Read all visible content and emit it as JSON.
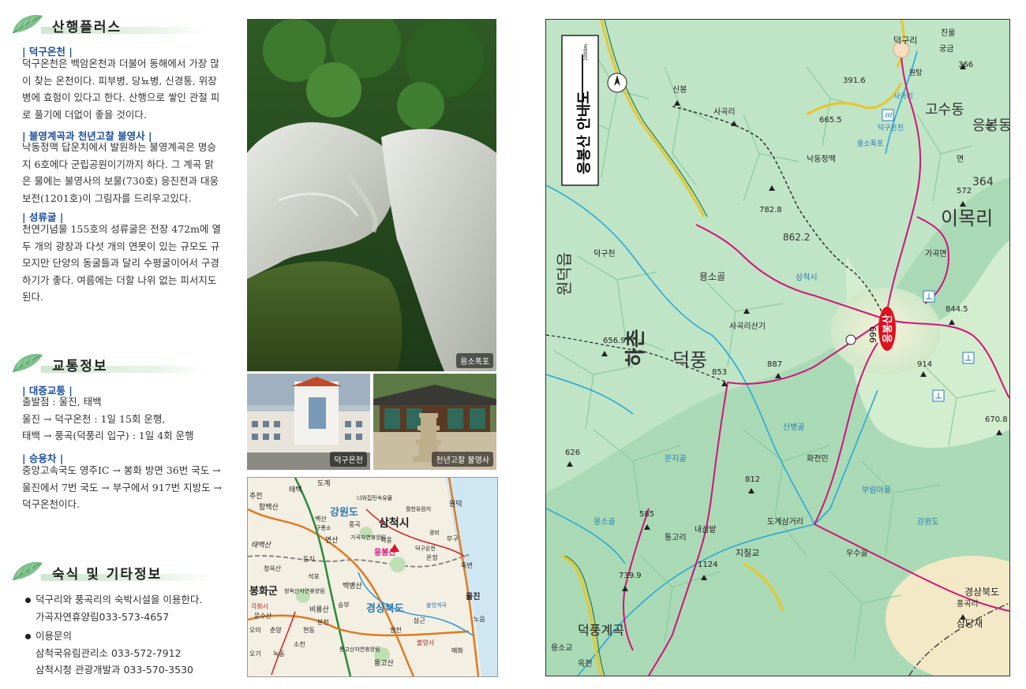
{
  "sections": {
    "hiking": {
      "title": "산행플러스",
      "items": [
        {
          "heading": "| 덕구온천 |",
          "lines": [
            "덕구온천은 백암온천과 더불어 동해에서 가장 많",
            "이 찾는 온천이다. 피부병, 당뇨병, 신경통, 위장",
            "병에 효험이 있다고 한다. 산행으로 쌓인 관절 피",
            "로 풀기에 더없이 좋을 것이다."
          ]
        },
        {
          "heading": "| 불영계곡과 천년고찰 불영사 |",
          "lines": [
            "낙동정맥 답운치에서 발원하는 불영계곡은 명승",
            "지 6호에다 군립공원이기까지 하다. 그 계곡 맑",
            "은 물에는 불영사의 보물(730호) 응진전과 대웅",
            "보전(1201호)이 그림자를 드리우고있다."
          ]
        },
        {
          "heading": "| 성류굴 |",
          "lines": [
            " 천연기념물 155호의 성류굴은 전장 472m에 열",
            "두 개의 광장과 다섯 개의 연못이 있는 규모도 규",
            "모지만 단양의 동굴들과 달리 수평굴이어서 구경",
            "하기가 좋다. 여름에는 더할 나위 없는 피서지도",
            "된다."
          ]
        }
      ]
    },
    "transport": {
      "title": "교통정보",
      "items": [
        {
          "heading": "| 대중교통 |",
          "lines": [
            "출발점 : 울진, 태백",
            "울진 → 덕구온천 : 1일 15회 운행,",
            "태백 → 풍곡(덕풍리 입구) : 1일 4회 운행"
          ]
        },
        {
          "heading": "| 승용차 |",
          "lines": [
            "중앙고속국도 영주IC → 봉화 방면 36번 국도 →",
            "울진에서 7번 국도 → 부구에서 917번 지방도 →",
            "덕구온천이다."
          ]
        }
      ]
    },
    "lodging": {
      "title": "숙식 및 기타정보",
      "bullets": [
        {
          "lines": [
            "덕구리와 풍곡리의 숙박시설을 이용한다.",
            "가곡자연휴양림033-573-4657"
          ]
        },
        {
          "lines": [
            "이용문의",
            "삼척국유림관리소 033-572-7912",
            "삼척시청 관광개발과 033-570-3530"
          ]
        }
      ]
    }
  },
  "photos": {
    "falls_caption": "용소폭포",
    "spa_caption": "덕구온천",
    "temple_caption": "천년고찰 불영사"
  },
  "region_map": {
    "places": {
      "dogye": "도계",
      "taebaek": "태백",
      "chucheon": "추전",
      "hambaeksan": "함백산",
      "gangwon": "강원도",
      "samcheok": "삼척시",
      "bulyeong_rest": "너와집민속유물",
      "wolcheon": "월천유원지",
      "wondeok": "원덕",
      "baeksan": "백산",
      "punggok": "풍곡",
      "gagok": "가곡자연휴양림",
      "deokpung": "덕풍",
      "taebaeksan": "태백산",
      "myeonsan": "면산",
      "eungbongsan": "응봉산",
      "deokgu_spa": "덕구온천",
      "onjeong": "온정",
      "bugu": "부구",
      "jukbyeon": "죽변",
      "cheongoksan": "청옥산",
      "deungchi": "등치",
      "seokpo": "석포",
      "guryong": "구룡소",
      "bonghwa": "봉화군",
      "cheongoksan_forest": "청옥산자연휴양림",
      "baekbyeongsan": "백병산",
      "gyeongbuk": "경상북도",
      "uljin": "울진",
      "bulyeong_valley": "불영계곡",
      "gakhwasa": "각화사",
      "munsusan": "문수산",
      "biryongsan": "비룡산",
      "chunyang": "춘양",
      "samgeun": "삼근",
      "sseangjeon": "쌍전",
      "bulyeongsa": "불영사",
      "tonggosan_forest": "통고산자연휴양림",
      "tonggosan": "통고산",
      "maehwa": "매화",
      "hyeondong": "현동",
      "ogi": "오기",
      "nogok": "녹동",
      "soncheon": "소천",
      "bunchon": "분천",
      "seungbu": "승부",
      "gwangbi": "광비",
      "eoriji": "오미",
      "noeum": "노음"
    }
  },
  "trail_map": {
    "title": "응봉산 안내도",
    "scale": "1000m",
    "summit": "응봉산",
    "summit_elev": "999",
    "labels": [
      "덕구리",
      "덕구온천",
      "용소폭포",
      "원탕",
      "366",
      "궁금",
      "진울",
      "면",
      "북",
      "고수동",
      "이목리",
      "응봉동",
      "364",
      "391.6",
      "665.5",
      "낙동정맥",
      "신봉",
      "하촌",
      "덕풍",
      "사곡리",
      "원덕읍",
      "782.8",
      "656.9",
      "사곡리산기",
      "용소골",
      "삼척시",
      "가곡면",
      "862.2",
      "853",
      "887",
      "914",
      "844.5",
      "670.8",
      "572",
      "626",
      "812",
      "585",
      "739.9",
      "1124",
      "풍곡리",
      "덕풍계곡",
      "용소골",
      "문지골",
      "신병골",
      "부림마을",
      "화전민",
      "우수골",
      "강원도",
      "경상북도",
      "삼당재",
      "통고리",
      "용소교",
      "내삼밭",
      "지질교",
      "도계삼거리",
      "옥전",
      "덕구천",
      "사곡리"
    ]
  },
  "colors": {
    "heading_blue": "#1d4f9a",
    "route_magenta": "#d0147a",
    "map_green": "#8fcf9f",
    "river_blue": "#2aa8d8",
    "summit_red": "#e01020"
  }
}
